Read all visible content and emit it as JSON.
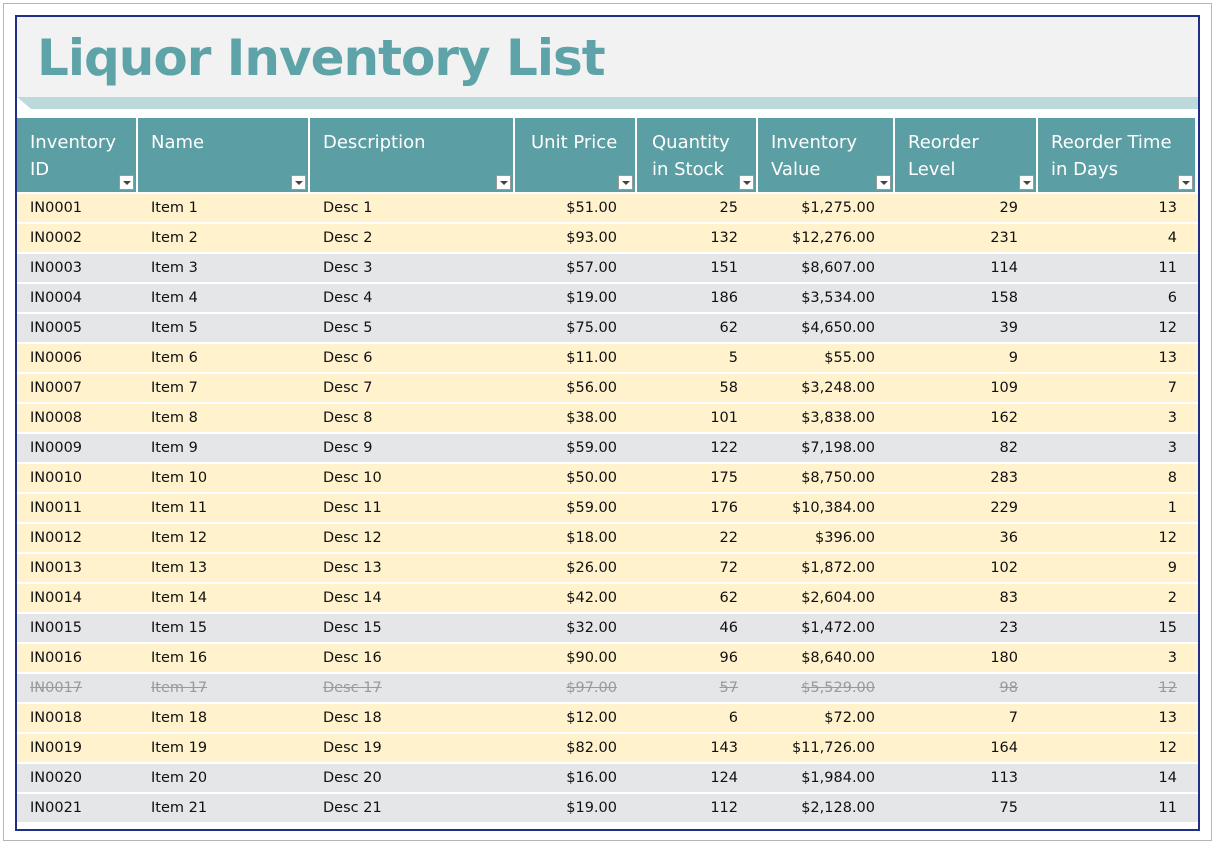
{
  "title": "Liquor Inventory List",
  "columns": [
    {
      "label": "Inventory\nID"
    },
    {
      "label": "Name"
    },
    {
      "label": "Description"
    },
    {
      "label": "Unit Price"
    },
    {
      "label": "Quantity\nin Stock"
    },
    {
      "label": "Inventory\nValue"
    },
    {
      "label": "Reorder\nLevel"
    },
    {
      "label": "Reorder Time\nin Days"
    }
  ],
  "colors": {
    "title": "#5ea3a8",
    "header_bg": "#5b9ea3",
    "row_yellow": "#fff2cc",
    "row_gray": "#e5e6e8",
    "frame": "#1f2f8a"
  },
  "rows": [
    {
      "id": "IN0001",
      "name": "Item 1",
      "desc": "Desc 1",
      "price": "$51.00",
      "qty": "25",
      "value": "$1,275.00",
      "reorder": "29",
      "days": "13",
      "band": "yellow",
      "discontinued": false
    },
    {
      "id": "IN0002",
      "name": "Item 2",
      "desc": "Desc 2",
      "price": "$93.00",
      "qty": "132",
      "value": "$12,276.00",
      "reorder": "231",
      "days": "4",
      "band": "yellow",
      "discontinued": false
    },
    {
      "id": "IN0003",
      "name": "Item 3",
      "desc": "Desc 3",
      "price": "$57.00",
      "qty": "151",
      "value": "$8,607.00",
      "reorder": "114",
      "days": "11",
      "band": "gray",
      "discontinued": false
    },
    {
      "id": "IN0004",
      "name": "Item 4",
      "desc": "Desc 4",
      "price": "$19.00",
      "qty": "186",
      "value": "$3,534.00",
      "reorder": "158",
      "days": "6",
      "band": "gray",
      "discontinued": false
    },
    {
      "id": "IN0005",
      "name": "Item 5",
      "desc": "Desc 5",
      "price": "$75.00",
      "qty": "62",
      "value": "$4,650.00",
      "reorder": "39",
      "days": "12",
      "band": "gray",
      "discontinued": false
    },
    {
      "id": "IN0006",
      "name": "Item 6",
      "desc": "Desc 6",
      "price": "$11.00",
      "qty": "5",
      "value": "$55.00",
      "reorder": "9",
      "days": "13",
      "band": "yellow",
      "discontinued": false
    },
    {
      "id": "IN0007",
      "name": "Item 7",
      "desc": "Desc 7",
      "price": "$56.00",
      "qty": "58",
      "value": "$3,248.00",
      "reorder": "109",
      "days": "7",
      "band": "yellow",
      "discontinued": false
    },
    {
      "id": "IN0008",
      "name": "Item 8",
      "desc": "Desc 8",
      "price": "$38.00",
      "qty": "101",
      "value": "$3,838.00",
      "reorder": "162",
      "days": "3",
      "band": "yellow",
      "discontinued": false
    },
    {
      "id": "IN0009",
      "name": "Item 9",
      "desc": "Desc 9",
      "price": "$59.00",
      "qty": "122",
      "value": "$7,198.00",
      "reorder": "82",
      "days": "3",
      "band": "gray",
      "discontinued": false
    },
    {
      "id": "IN0010",
      "name": "Item 10",
      "desc": "Desc 10",
      "price": "$50.00",
      "qty": "175",
      "value": "$8,750.00",
      "reorder": "283",
      "days": "8",
      "band": "yellow",
      "discontinued": false
    },
    {
      "id": "IN0011",
      "name": "Item 11",
      "desc": "Desc 11",
      "price": "$59.00",
      "qty": "176",
      "value": "$10,384.00",
      "reorder": "229",
      "days": "1",
      "band": "yellow",
      "discontinued": false
    },
    {
      "id": "IN0012",
      "name": "Item 12",
      "desc": "Desc 12",
      "price": "$18.00",
      "qty": "22",
      "value": "$396.00",
      "reorder": "36",
      "days": "12",
      "band": "yellow",
      "discontinued": false
    },
    {
      "id": "IN0013",
      "name": "Item 13",
      "desc": "Desc 13",
      "price": "$26.00",
      "qty": "72",
      "value": "$1,872.00",
      "reorder": "102",
      "days": "9",
      "band": "yellow",
      "discontinued": false
    },
    {
      "id": "IN0014",
      "name": "Item 14",
      "desc": "Desc 14",
      "price": "$42.00",
      "qty": "62",
      "value": "$2,604.00",
      "reorder": "83",
      "days": "2",
      "band": "yellow",
      "discontinued": false
    },
    {
      "id": "IN0015",
      "name": "Item 15",
      "desc": "Desc 15",
      "price": "$32.00",
      "qty": "46",
      "value": "$1,472.00",
      "reorder": "23",
      "days": "15",
      "band": "gray",
      "discontinued": false
    },
    {
      "id": "IN0016",
      "name": "Item 16",
      "desc": "Desc 16",
      "price": "$90.00",
      "qty": "96",
      "value": "$8,640.00",
      "reorder": "180",
      "days": "3",
      "band": "yellow",
      "discontinued": false
    },
    {
      "id": "IN0017",
      "name": "Item 17",
      "desc": "Desc 17",
      "price": "$97.00",
      "qty": "57",
      "value": "$5,529.00",
      "reorder": "98",
      "days": "12",
      "band": "gray",
      "discontinued": true
    },
    {
      "id": "IN0018",
      "name": "Item 18",
      "desc": "Desc 18",
      "price": "$12.00",
      "qty": "6",
      "value": "$72.00",
      "reorder": "7",
      "days": "13",
      "band": "yellow",
      "discontinued": false
    },
    {
      "id": "IN0019",
      "name": "Item 19",
      "desc": "Desc 19",
      "price": "$82.00",
      "qty": "143",
      "value": "$11,726.00",
      "reorder": "164",
      "days": "12",
      "band": "yellow",
      "discontinued": false
    },
    {
      "id": "IN0020",
      "name": "Item 20",
      "desc": "Desc 20",
      "price": "$16.00",
      "qty": "124",
      "value": "$1,984.00",
      "reorder": "113",
      "days": "14",
      "band": "gray",
      "discontinued": false
    },
    {
      "id": "IN0021",
      "name": "Item 21",
      "desc": "Desc 21",
      "price": "$19.00",
      "qty": "112",
      "value": "$2,128.00",
      "reorder": "75",
      "days": "11",
      "band": "gray",
      "discontinued": false
    }
  ]
}
